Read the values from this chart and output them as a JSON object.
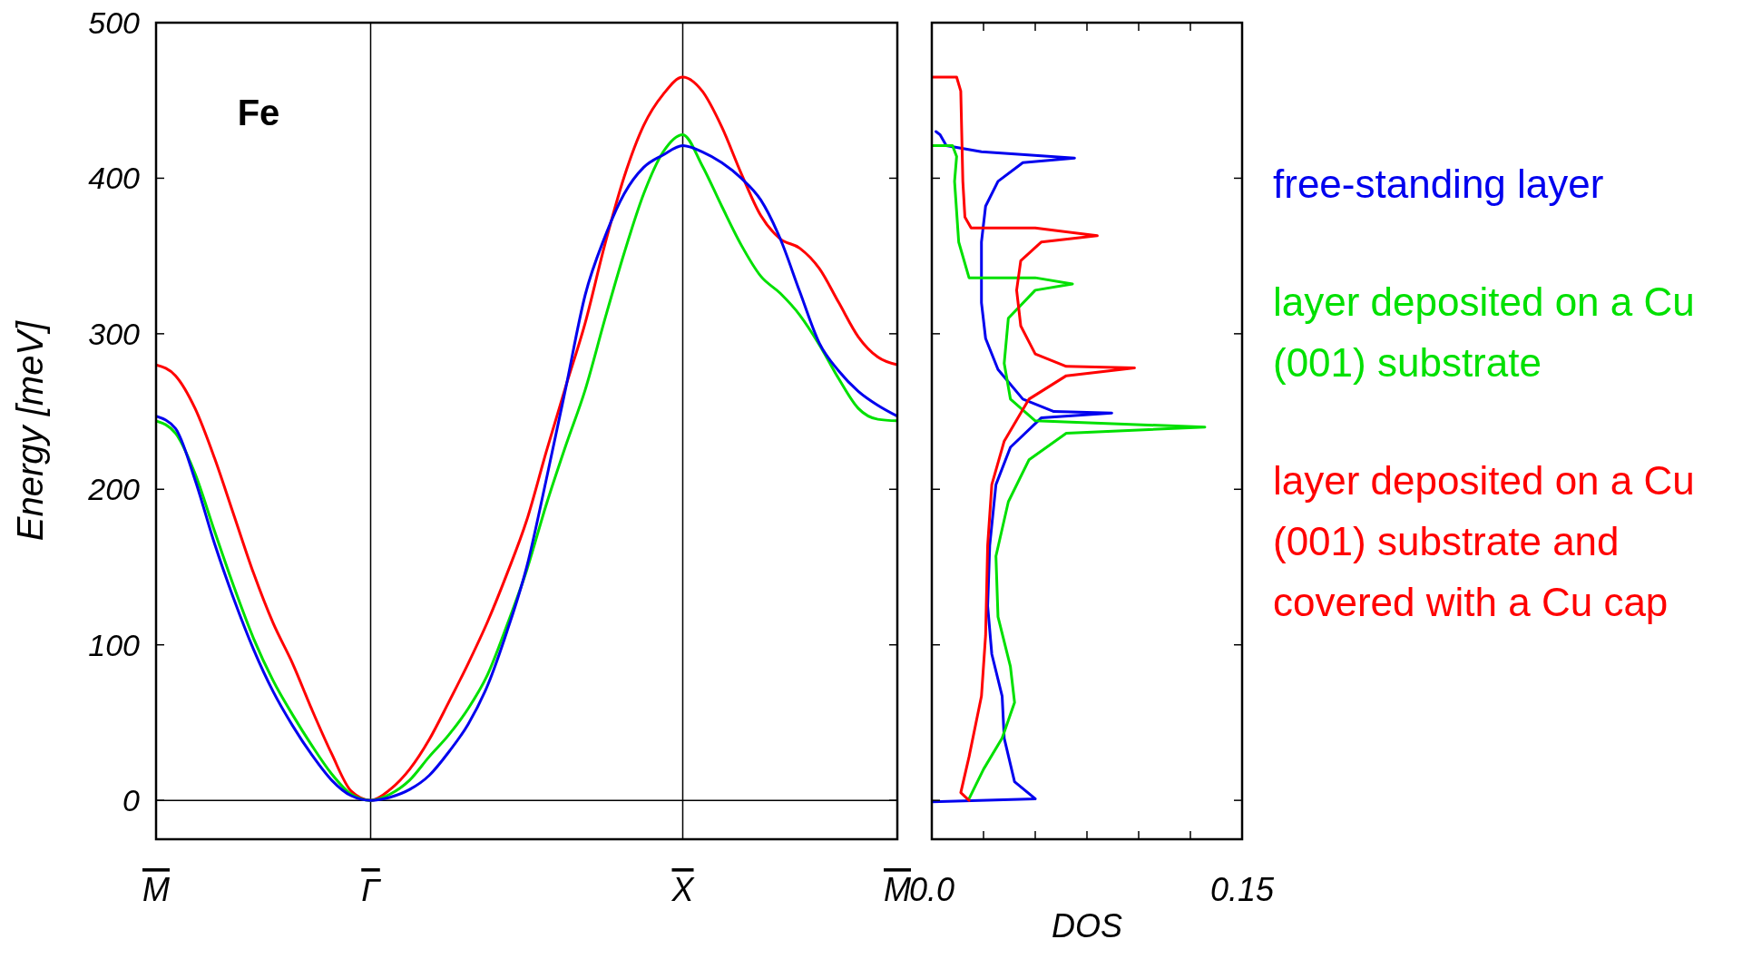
{
  "chart_data": [
    {
      "type": "line",
      "ylabel": "Energy [meV]",
      "annotations": [
        "Fe"
      ],
      "categories": [
        "M",
        null,
        null,
        null,
        null,
        null,
        null,
        null,
        null,
        null,
        null,
        "Γ",
        null,
        null,
        null,
        null,
        null,
        null,
        null,
        null,
        null,
        null,
        null,
        null,
        null,
        null,
        null,
        "X",
        null,
        null,
        null,
        null,
        null,
        null,
        null,
        null,
        null,
        null,
        "M"
      ],
      "ylim": [
        -25,
        500
      ],
      "yticks": [
        0,
        100,
        200,
        300,
        400,
        500
      ],
      "ref_lines": [
        {
          "axis": "x",
          "value": "Γ"
        },
        {
          "axis": "x",
          "value": "X"
        },
        {
          "axis": "y",
          "value": 0
        }
      ],
      "series": [
        {
          "color": "#ff0000",
          "values": [
            280,
            273,
            252,
            220,
            183,
            146,
            114,
            88,
            58,
            30,
            6,
            0,
            7,
            20,
            39,
            63,
            88,
            115,
            146,
            180,
            224,
            266,
            307,
            357,
            401,
            434,
            454,
            465,
            456,
            433,
            403,
            376,
            361,
            355,
            342,
            320,
            298,
            285,
            280
          ]
        },
        {
          "color": "#00e000",
          "values": [
            244,
            236,
            210,
            173,
            137,
            104,
            77,
            55,
            35,
            17,
            4,
            0,
            4,
            13,
            28,
            42,
            59,
            81,
            113,
            148,
            190,
            228,
            264,
            309,
            352,
            390,
            417,
            428,
            408,
            382,
            357,
            337,
            326,
            312,
            293,
            271,
            252,
            245,
            244
          ]
        },
        {
          "color": "#0000ee",
          "values": [
            247,
            239,
            206,
            165,
            129,
            97,
            70,
            48,
            29,
            13,
            3,
            0,
            2,
            7,
            16,
            31,
            49,
            74,
            109,
            150,
            206,
            265,
            325,
            362,
            390,
            407,
            415,
            421,
            417,
            410,
            400,
            386,
            361,
            327,
            294,
            276,
            263,
            254,
            247
          ]
        }
      ]
    },
    {
      "type": "line",
      "xlabel": "DOS",
      "xlim": [
        0,
        0.15
      ],
      "xticks": [
        {
          "value": 0,
          "label": "0.0"
        },
        {
          "value": 0.025,
          "label": null
        },
        {
          "value": 0.05,
          "label": null
        },
        {
          "value": 0.075,
          "label": null
        },
        {
          "value": 0.1,
          "label": null
        },
        {
          "value": 0.125,
          "label": null
        },
        0.15
      ],
      "ylim": [
        -25,
        500
      ],
      "yticks": [
        0,
        100,
        200,
        300,
        400,
        500
      ],
      "tick_labels": "x",
      "legend": "right",
      "series": [
        {
          "name": "free-standing layer",
          "color": "#0000ee",
          "x": [
            0.002,
            0.004,
            0.007,
            0.024,
            0.069,
            0.044,
            0.042,
            0.032,
            0.026,
            0.024,
            0.024,
            0.026,
            0.032,
            0.044,
            0.059,
            0.087,
            0.053,
            0.038,
            0.031,
            0.028,
            0.027,
            0.029,
            0.034,
            0.035,
            0.04,
            0.05,
            0
          ],
          "values": [
            430,
            428,
            421,
            417,
            413,
            410,
            408,
            398,
            382,
            359,
            320,
            297,
            277,
            258,
            250,
            249,
            246,
            227,
            203,
            164,
            125,
            94,
            67,
            40,
            12,
            1,
            -1
          ]
        },
        {
          "name": "layer deposited on a Cu (001) substrate",
          "color": "#00e000",
          "x": [
            0,
            0.01,
            0.012,
            0.011,
            0.013,
            0.018,
            0.05,
            0.068,
            0.05,
            0.037,
            0.035,
            0.038,
            0.05,
            0.132,
            0.065,
            0.047,
            0.037,
            0.031,
            0.032,
            0.038,
            0.04,
            0.034,
            0.025,
            0.018
          ],
          "values": [
            421,
            421,
            414,
            398,
            359,
            336,
            336,
            332,
            328,
            310,
            281,
            258,
            244,
            240,
            236,
            219,
            192,
            157,
            118,
            86,
            63,
            40,
            20,
            1
          ]
        },
        {
          "name": "layer deposited on a Cu (001) substrate and covered with a Cu cap",
          "color": "#ff0000",
          "x": [
            0,
            0.012,
            0.014,
            0.015,
            0.016,
            0.019,
            0.05,
            0.08,
            0.053,
            0.043,
            0.041,
            0.043,
            0.05,
            0.065,
            0.098,
            0.065,
            0.047,
            0.035,
            0.029,
            0.027,
            0.026,
            0.024,
            0.018,
            0.014,
            0.018
          ],
          "values": [
            465,
            465,
            456,
            398,
            375,
            368,
            368,
            363,
            359,
            347,
            328,
            305,
            287,
            279,
            278,
            273,
            258,
            231,
            203,
            164,
            106,
            67,
            28,
            5,
            0
          ]
        }
      ]
    }
  ]
}
